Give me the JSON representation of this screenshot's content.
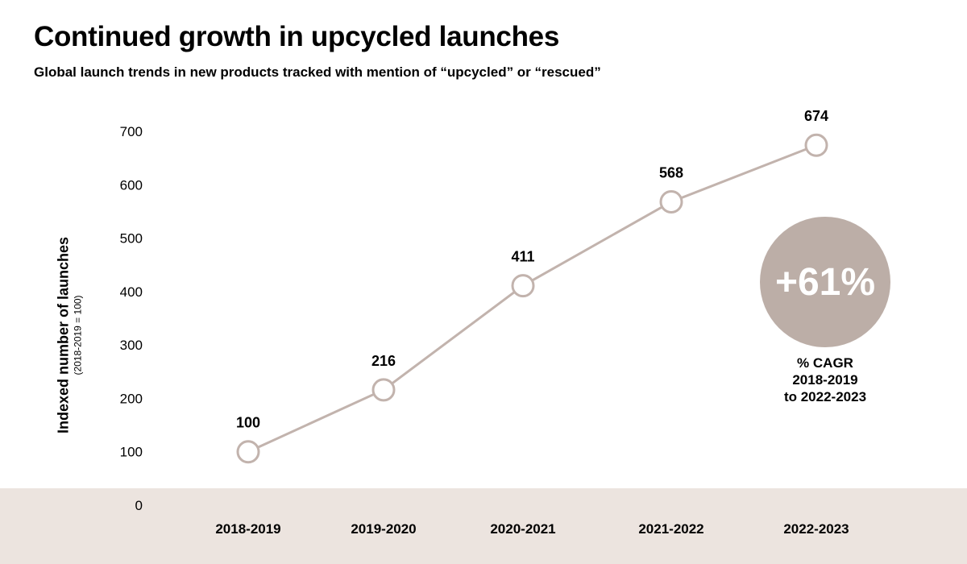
{
  "chart_data": {
    "type": "line",
    "title": "Continued growth in upcycled launches",
    "subtitle": "Global launch trends in new products tracked with mention of “upcycled” or “rescued”",
    "ylabel": "Indexed number of launches",
    "ylabel_note": "(2018-2019 = 100)",
    "xlabel": "",
    "categories": [
      "2018-2019",
      "2019-2020",
      "2020-2021",
      "2021-2022",
      "2022-2023"
    ],
    "values": [
      100,
      216,
      411,
      568,
      674
    ],
    "data_labels": [
      "100",
      "216",
      "411",
      "568",
      "674"
    ],
    "ylim": [
      0,
      700
    ],
    "yticks": [
      "0",
      "100",
      "200",
      "300",
      "400",
      "500",
      "600",
      "700"
    ],
    "grid": false,
    "line_color": "#c2b3ad",
    "marker": "hollow-circle",
    "annotation": {
      "value": "+61%",
      "caption": [
        "% CAGR",
        "2018-2019",
        "to 2022-2023"
      ],
      "color": "#bcaea7"
    }
  }
}
